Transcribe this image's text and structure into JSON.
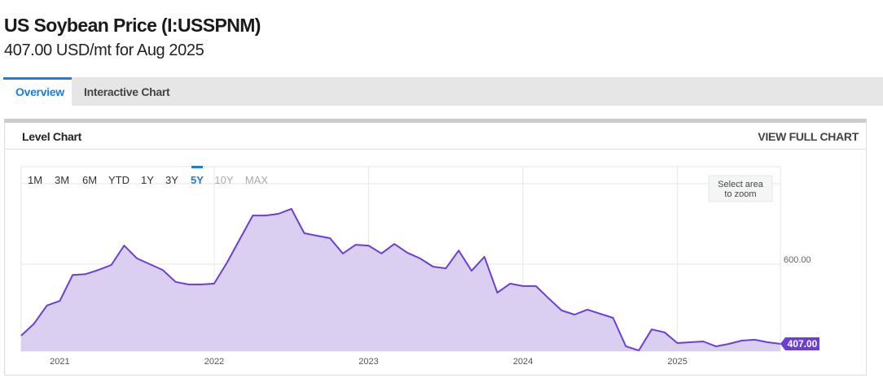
{
  "header": {
    "title": "US Soybean Price (I:USSPNM)",
    "subtitle": "407.00 USD/mt for Aug 2025"
  },
  "tabs": [
    {
      "label": "Overview",
      "active": true
    },
    {
      "label": "Interactive Chart",
      "active": false
    }
  ],
  "card": {
    "title": "Level Chart",
    "link": "VIEW FULL CHART"
  },
  "range_buttons": [
    {
      "label": "1M",
      "state": "normal"
    },
    {
      "label": "3M",
      "state": "normal"
    },
    {
      "label": "6M",
      "state": "normal"
    },
    {
      "label": "YTD",
      "state": "normal"
    },
    {
      "label": "1Y",
      "state": "normal"
    },
    {
      "label": "3Y",
      "state": "normal"
    },
    {
      "label": "5Y",
      "state": "active"
    },
    {
      "label": "10Y",
      "state": "disabled"
    },
    {
      "label": "MAX",
      "state": "disabled"
    }
  ],
  "zoom_hint": [
    "Select area",
    "to zoom"
  ],
  "colors": {
    "line": "#6b3fd4",
    "fill": "#d9ccf0",
    "accent": "#1a7de0",
    "badge": "#6b3fd4"
  },
  "chart_data": {
    "type": "area",
    "title": "Level Chart",
    "ylabel": "USD/mt",
    "y_ticks": [
      {
        "value": 600,
        "label": "600.00"
      }
    ],
    "ylim": [
      390,
      1035
    ],
    "x_ticks": [
      {
        "index": 3,
        "label": "2021"
      },
      {
        "index": 15,
        "label": "2022"
      },
      {
        "index": 27,
        "label": "2023"
      },
      {
        "index": 39,
        "label": "2024"
      },
      {
        "index": 51,
        "label": "2025"
      }
    ],
    "last_value_label": "407.00",
    "values": [
      427,
      456,
      500,
      511,
      574,
      576,
      586,
      598,
      645,
      614,
      600,
      586,
      557,
      551,
      551,
      553,
      604,
      661,
      718,
      718,
      722,
      734,
      675,
      669,
      663,
      626,
      647,
      645,
      626,
      649,
      628,
      614,
      594,
      590,
      633,
      584,
      618,
      531,
      553,
      547,
      547,
      517,
      488,
      478,
      490,
      480,
      470,
      401,
      391,
      442,
      435,
      409,
      411,
      413,
      401,
      407,
      415,
      417,
      411,
      407
    ]
  }
}
